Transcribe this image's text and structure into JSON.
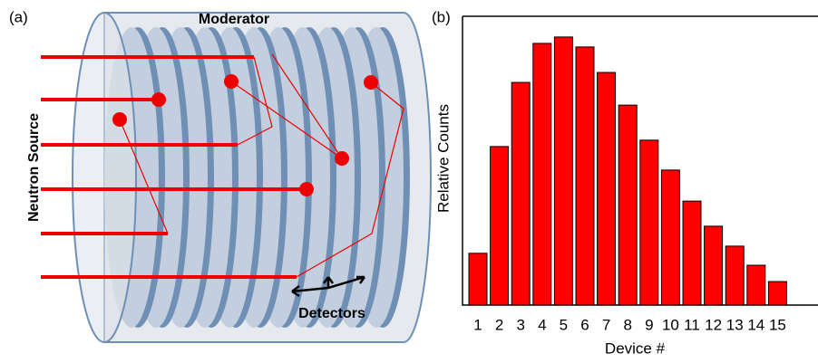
{
  "panel_a": {
    "label": "(a)",
    "moderator": "Moderator",
    "source": "Neutron Source",
    "detectors": "Detectors"
  },
  "chart_data": {
    "type": "bar",
    "panel_label": "(b)",
    "x_label": "Device #",
    "y_label": "Relative Counts",
    "categories": [
      "1",
      "2",
      "3",
      "4",
      "5",
      "6",
      "7",
      "8",
      "9",
      "10",
      "11",
      "12",
      "13",
      "14",
      "15"
    ],
    "values": [
      1.3,
      3.98,
      5.59,
      6.57,
      6.73,
      6.48,
      5.84,
      5.02,
      4.14,
      3.39,
      2.61,
      1.98,
      1.48,
      1.0,
      0.59
    ],
    "color": "#ff0000",
    "ylim": [
      0,
      7.25
    ]
  }
}
